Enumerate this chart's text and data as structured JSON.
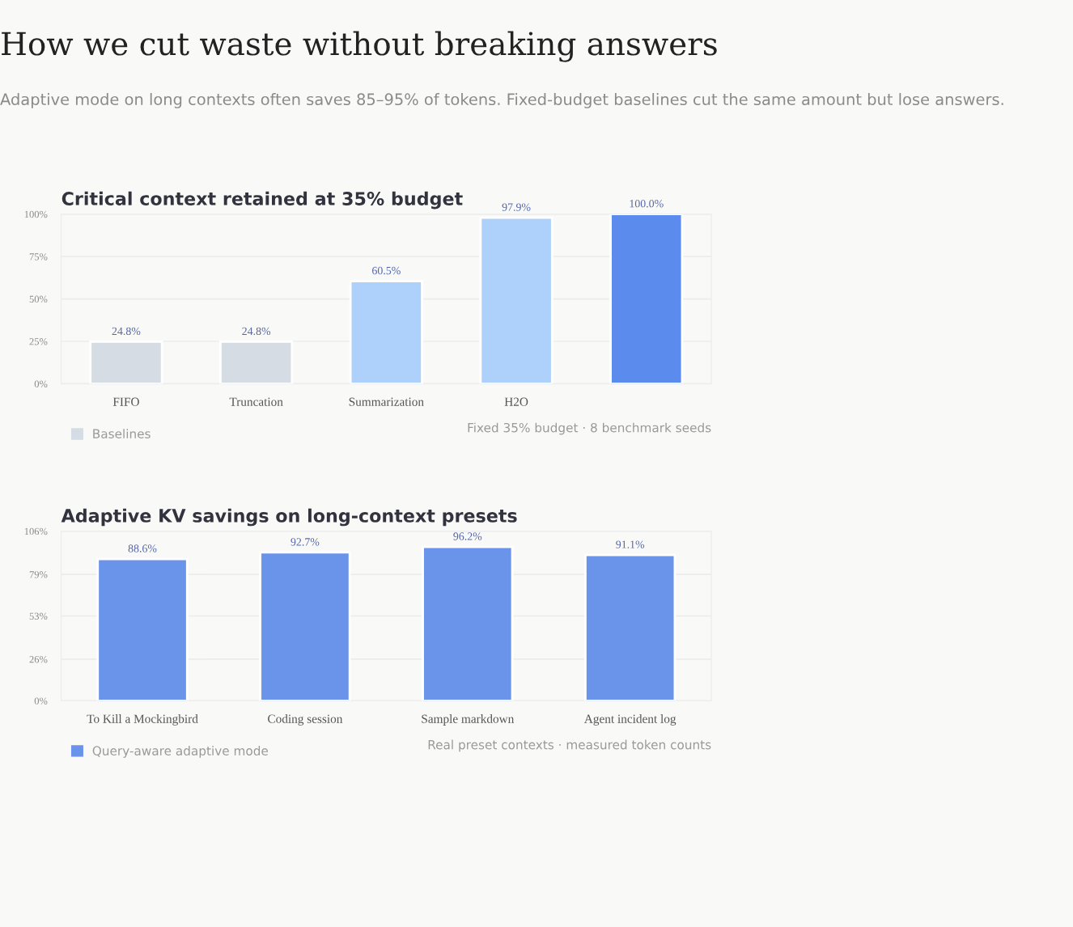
{
  "chart_data": [
    {
      "type": "other",
      "title": "How we cut waste without breaking answers",
      "subtitle": "Adaptive mode on long contexts often saves 85–95% of tokens. Fixed-budget baselines cut the same amount but lose answers."
    },
    {
      "type": "bar",
      "title": "Critical context retained at 35% budget",
      "categories": [
        "FIFO",
        "Truncation",
        "Summarization",
        "H2O",
        null
      ],
      "series": [
        {
          "name": "Baselines",
          "color": "#d5dce4",
          "values": [
            24.8,
            24.8,
            null,
            null,
            null
          ],
          "value_labels": [
            "24.8%",
            "24.8%",
            null,
            null,
            null
          ]
        },
        {
          "color": "#aed1fb",
          "values": [
            null,
            null,
            60.5,
            97.9,
            null
          ],
          "value_labels": [
            null,
            null,
            "60.5%",
            "97.9%",
            null
          ]
        },
        {
          "color": "#5b8bec",
          "values": [
            null,
            null,
            null,
            null,
            100.0
          ],
          "value_labels": [
            null,
            null,
            null,
            null,
            "100.0%"
          ]
        }
      ],
      "ylim": [
        0,
        100
      ],
      "yticks": [
        {
          "value": 0,
          "label": "0%"
        },
        {
          "value": 25,
          "label": "25%"
        },
        {
          "value": 50,
          "label": "50%"
        },
        {
          "value": 75,
          "label": "75%"
        },
        {
          "value": 100,
          "label": "100%"
        }
      ],
      "grid": "y",
      "legend": "bottom left",
      "annotations": [
        "Fixed 35% budget · 8 benchmark seeds"
      ]
    },
    {
      "type": "bar",
      "title": "Adaptive KV savings on long-context presets",
      "categories": [
        "To Kill a Mockingbird",
        "Coding session",
        "Sample markdown",
        "Agent incident log"
      ],
      "series": [
        {
          "name": "Query-aware adaptive mode",
          "color": "#6a93ea",
          "values": [
            88.6,
            92.7,
            96.2,
            91.1
          ],
          "value_labels": [
            "88.6%",
            "92.7%",
            "96.2%",
            "91.1%"
          ]
        }
      ],
      "ylim": [
        0,
        106
      ],
      "yticks": [
        {
          "value": 0,
          "label": "0%"
        },
        {
          "value": 26,
          "label": "26%"
        },
        {
          "value": 53,
          "label": "53%"
        },
        {
          "value": 79,
          "label": "79%"
        },
        {
          "value": 106,
          "label": "106%"
        }
      ],
      "grid": "y",
      "legend": "bottom left",
      "annotations": [
        "Real preset contexts · measured token counts"
      ]
    }
  ]
}
